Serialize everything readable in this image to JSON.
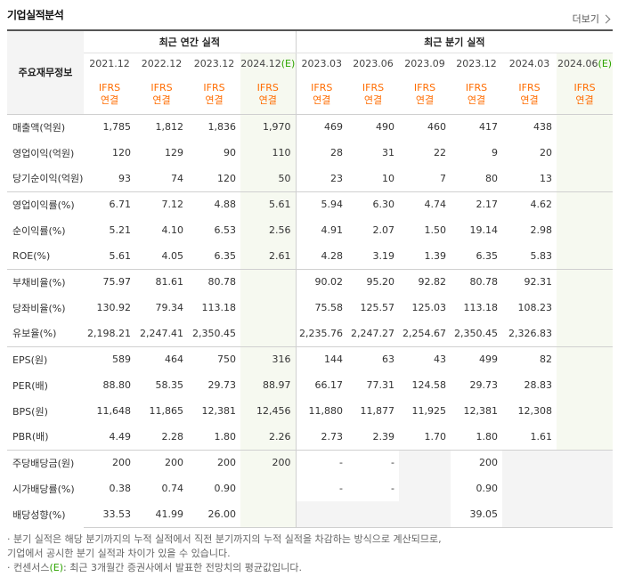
{
  "header": {
    "title": "기업실적분석",
    "more_label": "더보기"
  },
  "table": {
    "corner_label": "주요재무정보",
    "groups": {
      "annual": "최근 연간 실적",
      "quarterly": "최근 분기 실적"
    },
    "periods": [
      {
        "prefix": "2021.12",
        "suffix": ""
      },
      {
        "prefix": "2022.12",
        "suffix": ""
      },
      {
        "prefix": "2023.12",
        "suffix": ""
      },
      {
        "prefix": "2024.12",
        "suffix": "(E)"
      },
      {
        "prefix": "2023.03",
        "suffix": ""
      },
      {
        "prefix": "2023.06",
        "suffix": ""
      },
      {
        "prefix": "2023.09",
        "suffix": ""
      },
      {
        "prefix": "2023.12",
        "suffix": ""
      },
      {
        "prefix": "2024.03",
        "suffix": ""
      },
      {
        "prefix": "2024.06",
        "suffix": "(E)"
      }
    ],
    "ifrs_top": "IFRS",
    "ifrs_bottom": "연결",
    "rows": [
      {
        "label": "매출액(억원)",
        "values": [
          "1,785",
          "1,812",
          "1,836",
          "1,970",
          "469",
          "490",
          "460",
          "417",
          "438",
          ""
        ]
      },
      {
        "label": "영업이익(억원)",
        "values": [
          "120",
          "129",
          "90",
          "110",
          "28",
          "31",
          "22",
          "9",
          "20",
          ""
        ]
      },
      {
        "label": "당기순이익(억원)",
        "values": [
          "93",
          "74",
          "120",
          "50",
          "23",
          "10",
          "7",
          "80",
          "13",
          ""
        ]
      },
      {
        "label": "영업이익률(%)",
        "values": [
          "6.71",
          "7.12",
          "4.88",
          "5.61",
          "5.94",
          "6.30",
          "4.74",
          "2.17",
          "4.62",
          ""
        ]
      },
      {
        "label": "순이익률(%)",
        "values": [
          "5.21",
          "4.10",
          "6.53",
          "2.56",
          "4.91",
          "2.07",
          "1.50",
          "19.14",
          "2.98",
          ""
        ]
      },
      {
        "label": "ROE(%)",
        "values": [
          "5.61",
          "4.05",
          "6.35",
          "2.61",
          "4.28",
          "3.19",
          "1.39",
          "6.35",
          "5.83",
          ""
        ]
      },
      {
        "label": "부채비율(%)",
        "values": [
          "75.97",
          "81.61",
          "80.78",
          "",
          "90.02",
          "95.20",
          "92.82",
          "80.78",
          "92.31",
          ""
        ]
      },
      {
        "label": "당좌비율(%)",
        "values": [
          "130.92",
          "79.34",
          "113.18",
          "",
          "75.58",
          "125.57",
          "125.03",
          "113.18",
          "108.23",
          ""
        ]
      },
      {
        "label": "유보율(%)",
        "values": [
          "2,198.21",
          "2,247.41",
          "2,350.45",
          "",
          "2,235.76",
          "2,247.27",
          "2,254.67",
          "2,350.45",
          "2,326.83",
          ""
        ]
      },
      {
        "label": "EPS(원)",
        "values": [
          "589",
          "464",
          "750",
          "316",
          "144",
          "63",
          "43",
          "499",
          "82",
          ""
        ]
      },
      {
        "label": "PER(배)",
        "values": [
          "88.80",
          "58.35",
          "29.73",
          "88.97",
          "66.17",
          "77.31",
          "124.58",
          "29.73",
          "28.83",
          ""
        ]
      },
      {
        "label": "BPS(원)",
        "values": [
          "11,648",
          "11,865",
          "12,381",
          "12,456",
          "11,880",
          "11,877",
          "11,925",
          "12,381",
          "12,308",
          ""
        ]
      },
      {
        "label": "PBR(배)",
        "values": [
          "4.49",
          "2.28",
          "1.80",
          "2.26",
          "2.73",
          "2.39",
          "1.70",
          "1.80",
          "1.61",
          ""
        ]
      },
      {
        "label": "주당배당금(원)",
        "values": [
          "200",
          "200",
          "200",
          "200",
          "-",
          "-",
          "",
          "200",
          "",
          ""
        ]
      },
      {
        "label": "시가배당률(%)",
        "values": [
          "0.38",
          "0.74",
          "0.90",
          "",
          "-",
          "-",
          "",
          "0.90",
          "",
          ""
        ]
      },
      {
        "label": "배당성향(%)",
        "values": [
          "33.53",
          "41.99",
          "26.00",
          "",
          "",
          "",
          "",
          "39.05",
          "",
          ""
        ]
      }
    ]
  },
  "notes": {
    "line1": "· 분기 실적은 해당 분기까지의 누적 실적에서 직전 분기까지의 누적 실적을 차감하는 방식으로 계산되므로,",
    "line2": "  기업에서 공시한 분기 실적과 차이가 있을 수 있습니다.",
    "line3_prefix": "· 컨센서스",
    "line3_em": "(E)",
    "line3_suffix": ": 최근 3개월간 증권사에서 발표한 전망치의 평균값입니다."
  },
  "colors": {
    "ifrs": "#ff6c00",
    "estimate_bg": "#f6f9f0",
    "estimate_mark": "#2ea400"
  }
}
